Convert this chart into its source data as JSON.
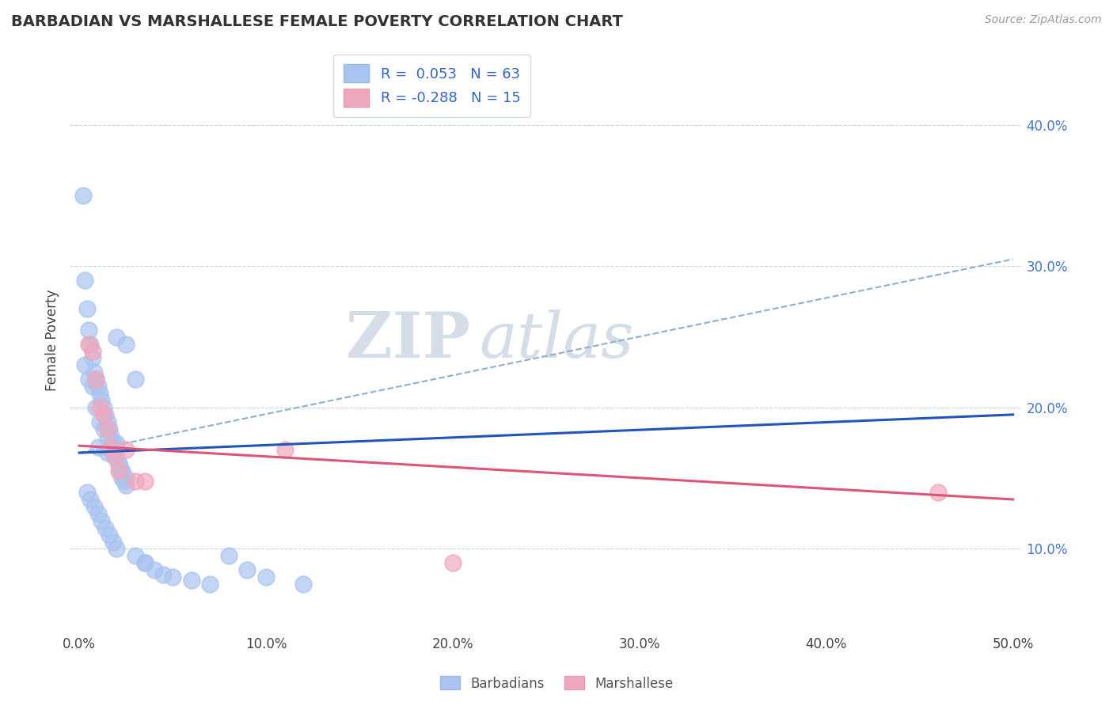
{
  "title": "BARBADIAN VS MARSHALLESE FEMALE POVERTY CORRELATION CHART",
  "source_text": "Source: ZipAtlas.com",
  "ylabel": "Female Poverty",
  "x_tick_labels": [
    "0.0%",
    "10.0%",
    "20.0%",
    "30.0%",
    "40.0%",
    "50.0%"
  ],
  "x_tick_values": [
    0.0,
    0.1,
    0.2,
    0.3,
    0.4,
    0.5
  ],
  "y_tick_labels": [
    "10.0%",
    "20.0%",
    "30.0%",
    "40.0%"
  ],
  "y_tick_values": [
    0.1,
    0.2,
    0.3,
    0.4
  ],
  "xlim": [
    -0.005,
    0.505
  ],
  "ylim": [
    0.04,
    0.455
  ],
  "barbadian_color": "#aac4f0",
  "marshallese_color": "#f0a8bc",
  "trend_blue_color": "#2255bb",
  "trend_pink_color": "#dd5577",
  "trend_dashed_color": "#90aece",
  "background_color": "#ffffff",
  "watermark_zip": "ZIP",
  "watermark_atlas": "atlas",
  "legend_label_1": "R =  0.053   N = 63",
  "legend_label_2": "R = -0.288   N = 15",
  "barbadian_x": [
    0.002,
    0.003,
    0.004,
    0.005,
    0.006,
    0.007,
    0.008,
    0.009,
    0.01,
    0.011,
    0.012,
    0.013,
    0.014,
    0.015,
    0.016,
    0.017,
    0.018,
    0.019,
    0.02,
    0.021,
    0.022,
    0.023,
    0.024,
    0.025,
    0.003,
    0.005,
    0.007,
    0.009,
    0.011,
    0.013,
    0.015,
    0.017,
    0.019,
    0.021,
    0.023,
    0.025,
    0.004,
    0.006,
    0.008,
    0.01,
    0.012,
    0.014,
    0.016,
    0.018,
    0.02,
    0.03,
    0.035,
    0.04,
    0.045,
    0.05,
    0.06,
    0.07,
    0.08,
    0.09,
    0.1,
    0.12,
    0.02,
    0.025,
    0.03,
    0.035,
    0.01,
    0.015,
    0.02
  ],
  "barbadian_y": [
    0.35,
    0.29,
    0.27,
    0.255,
    0.245,
    0.235,
    0.225,
    0.22,
    0.215,
    0.21,
    0.205,
    0.2,
    0.195,
    0.19,
    0.185,
    0.18,
    0.175,
    0.17,
    0.165,
    0.16,
    0.155,
    0.15,
    0.148,
    0.145,
    0.23,
    0.22,
    0.215,
    0.2,
    0.19,
    0.185,
    0.178,
    0.17,
    0.165,
    0.16,
    0.155,
    0.15,
    0.14,
    0.135,
    0.13,
    0.125,
    0.12,
    0.115,
    0.11,
    0.105,
    0.1,
    0.095,
    0.09,
    0.085,
    0.082,
    0.08,
    0.078,
    0.075,
    0.095,
    0.085,
    0.08,
    0.075,
    0.25,
    0.245,
    0.22,
    0.09,
    0.172,
    0.168,
    0.175
  ],
  "marshallese_x": [
    0.005,
    0.007,
    0.009,
    0.011,
    0.013,
    0.015,
    0.017,
    0.019,
    0.021,
    0.025,
    0.03,
    0.035,
    0.11,
    0.2,
    0.46
  ],
  "marshallese_y": [
    0.245,
    0.24,
    0.22,
    0.2,
    0.195,
    0.185,
    0.172,
    0.165,
    0.155,
    0.17,
    0.148,
    0.148,
    0.17,
    0.09,
    0.14
  ],
  "trend_blue_x0": 0.0,
  "trend_blue_y0": 0.168,
  "trend_blue_x1": 0.5,
  "trend_blue_y1": 0.195,
  "trend_pink_x0": 0.0,
  "trend_pink_y0": 0.173,
  "trend_pink_x1": 0.5,
  "trend_pink_y1": 0.135,
  "trend_dash_x0": 0.0,
  "trend_dash_y0": 0.168,
  "trend_dash_x1": 0.5,
  "trend_dash_y1": 0.305
}
